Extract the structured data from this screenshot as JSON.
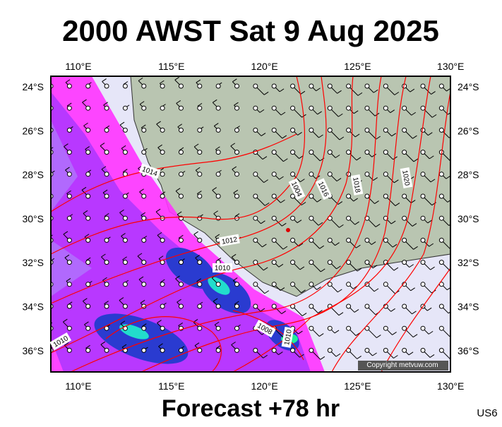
{
  "header": {
    "title": "2000 AWST Sat 9 Aug 2025"
  },
  "map": {
    "lon_labels": [
      "110°E",
      "115°E",
      "120°E",
      "125°E",
      "130°E"
    ],
    "lat_labels": [
      "24°S",
      "26°S",
      "28°S",
      "30°S",
      "32°S",
      "34°S",
      "36°S"
    ],
    "contour_labels": [
      "1014",
      "1004",
      "1016",
      "1018",
      "1020",
      "1012",
      "1010",
      "1008",
      "1010",
      "1010"
    ],
    "copyright": "Copyright metvuw.com"
  },
  "footer": {
    "forecast": "Forecast +78 hr",
    "code": "US6"
  }
}
